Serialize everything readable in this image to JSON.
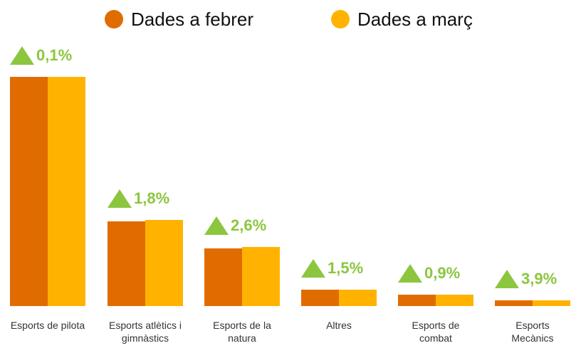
{
  "chart_data": {
    "type": "bar",
    "categories": [
      "Esports de pilota",
      "Esports atlètics i gimnàstics",
      "Esports de la natura",
      "Altres",
      "Esports de combat",
      "Esports Mecànics"
    ],
    "series": [
      {
        "name": "Dades a febrer",
        "color": "#e06c00",
        "values": [
          322,
          119,
          81,
          23,
          16,
          8
        ]
      },
      {
        "name": "Dades a març",
        "color": "#ffb300",
        "values": [
          322.3,
          121,
          83,
          23.3,
          16.1,
          8.3
        ]
      }
    ],
    "annotations": [
      "0,1%",
      "1,8%",
      "2,6%",
      "1,5%",
      "0,9%",
      "3,9%"
    ],
    "annotation_color": "#8cc63f",
    "ylim": [
      0,
      330
    ]
  }
}
